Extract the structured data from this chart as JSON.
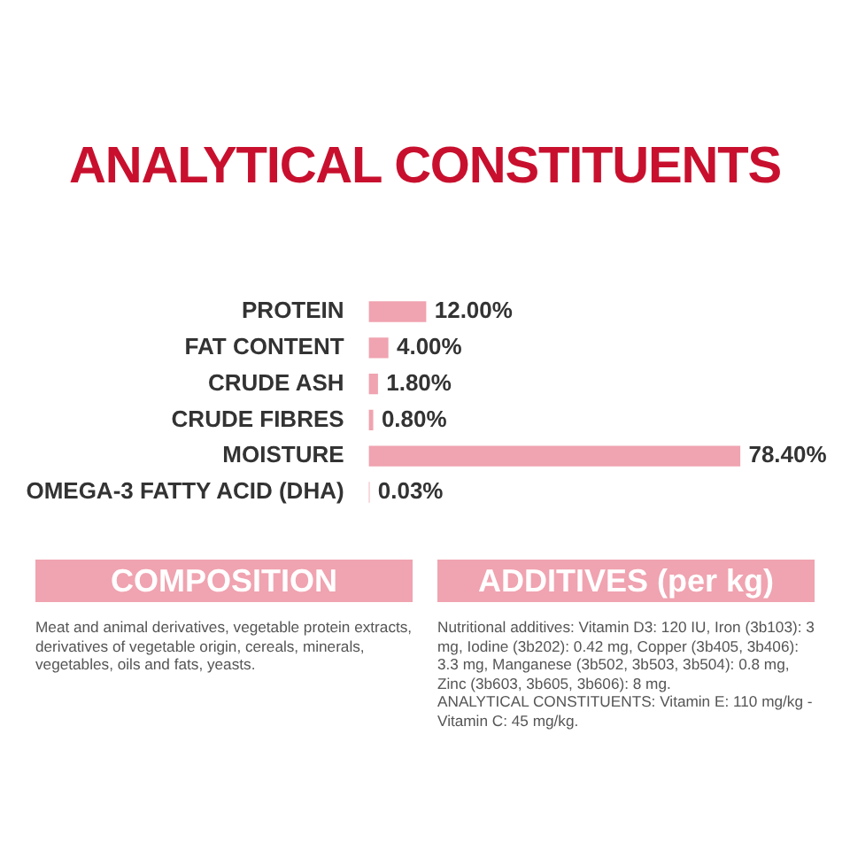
{
  "chart_data": {
    "type": "bar",
    "orientation": "horizontal",
    "title": "ANALYTICAL CONSTITUENTS",
    "categories": [
      "PROTEIN",
      "FAT CONTENT",
      "CRUDE ASH",
      "CRUDE FIBRES",
      "MOISTURE",
      "OMEGA-3 FATTY ACID (DHA)"
    ],
    "values": [
      12.0,
      4.0,
      1.8,
      0.8,
      78.4,
      0.03
    ],
    "value_labels": [
      "12.00%",
      "4.00%",
      "1.80%",
      "0.80%",
      "78.40%",
      "0.03%"
    ],
    "color": "#f0a3b0",
    "grid": false,
    "legend": false,
    "annotations": [
      "COMPOSITION",
      "Meat and animal derivatives, vegetable protein extracts, derivatives of vegetable origin, cereals, minerals, vegetables, oils and fats, yeasts.",
      "ADDITIVES (per kg)",
      "Nutritional additives: Vitamin D3: 120 IU, Iron (3b103): 3 mg, Iodine (3b202): 0.42 mg, Copper (3b405, 3b406): 3.3 mg, Manganese (3b502, 3b503, 3b504): 0.8 mg, Zinc (3b603, 3b605, 3b606): 8 mg.\nANALYTICAL CONSTITUENTS: Vitamin E: 110 mg/kg - Vitamin C: 45 mg/kg."
    ]
  }
}
